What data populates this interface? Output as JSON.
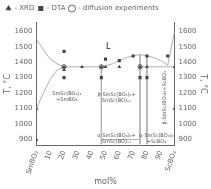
{
  "chart_data": {
    "type": "scatter",
    "xlabel": "mol%",
    "ylabel": "T, °C",
    "y2label": "T, °C",
    "xlim": [
      0,
      100
    ],
    "ylim": [
      860,
      1660
    ],
    "y2lim": [
      860,
      1660
    ],
    "xticks": [
      {
        "value": 0,
        "label": "SmBO₃"
      },
      10,
      20,
      30,
      40,
      50,
      60,
      70,
      80,
      90,
      {
        "value": 100,
        "label": "ScBO₃"
      }
    ],
    "yticks": [
      900,
      1000,
      1100,
      1200,
      1300,
      1400,
      1500,
      1600
    ],
    "y2ticks": [
      900,
      1000,
      1100,
      1200,
      1300,
      1400,
      1500,
      1600
    ],
    "grid": false,
    "legend": "upper left",
    "series": [
      {
        "type": "line",
        "color": "#b0b0b0",
        "line_style": "solid",
        "x": [
          0,
          5,
          10,
          15,
          20
        ],
        "values": [
          1550,
          1480,
          1420,
          1390,
          1370
        ]
      },
      {
        "type": "line",
        "color": "#b0b0b0",
        "line_style": "solid",
        "x": [
          0,
          5,
          10,
          15,
          20
        ],
        "values": [
          1100,
          1200,
          1290,
          1350,
          1370
        ]
      },
      {
        "type": "line",
        "color": "#b0b0b0",
        "line_style": "solid",
        "x": [
          20,
          47
        ],
        "values": [
          1370,
          1370
        ]
      },
      {
        "type": "line",
        "color": "#b0b0b0",
        "line_style": "solid",
        "x": [
          47,
          47
        ],
        "values": [
          1370,
          1300
        ]
      },
      {
        "type": "line",
        "color": "#b0b0b0",
        "line_style": "solid",
        "x": [
          47,
          47
        ],
        "values": [
          1300,
          870
        ]
      },
      {
        "type": "line",
        "color": "#b0b0b0",
        "line_style": "solid",
        "x": [
          47,
          55,
          60,
          65,
          70,
          75,
          80,
          85,
          90,
          95
        ],
        "values": [
          1370,
          1390,
          1410,
          1430,
          1440,
          1450,
          1440,
          1430,
          1410,
          1380
        ]
      },
      {
        "type": "line",
        "color": "#b0b0b0",
        "line_style": "solid",
        "x": [
          95,
          100
        ],
        "values": [
          1380,
          1600
        ]
      },
      {
        "type": "line",
        "color": "#b0b0b0",
        "line_style": "solid",
        "x": [
          75,
          75
        ],
        "values": [
          1450,
          870
        ]
      },
      {
        "type": "line",
        "color": "#b0b0b0",
        "line_style": "solid",
        "x": [
          80,
          80
        ],
        "values": [
          1440,
          870
        ]
      },
      {
        "type": "line",
        "color": "#b0b0b0",
        "line_style": "solid",
        "x": [
          47,
          75
        ],
        "values": [
          900,
          900
        ]
      },
      {
        "type": "line",
        "color": "#b0b0b0",
        "line_style": "solid",
        "x": [
          75,
          80
        ],
        "values": [
          1370,
          1370
        ]
      },
      {
        "type": "line",
        "color": "#b0b0b0",
        "line_style": "solid",
        "x": [
          80,
          100
        ],
        "values": [
          1370,
          1370
        ]
      },
      {
        "type": "scatter",
        "name": "- XRD",
        "color": "#444444",
        "marker": "triangle",
        "x": [
          0,
          0,
          20,
          20,
          33,
          47,
          50,
          60,
          75,
          80,
          100,
          100
        ],
        "values": [
          900,
          1100,
          1370,
          1350,
          1370,
          1370,
          1370,
          1370,
          1370,
          1370,
          1100,
          1370
        ]
      },
      {
        "type": "scatter",
        "name": "- DTA",
        "color": "#444444",
        "marker": "square",
        "x": [
          20,
          20,
          47,
          50,
          60,
          70,
          75,
          80,
          80,
          95
        ],
        "values": [
          1300,
          1470,
          1300,
          1420,
          1410,
          1440,
          1300,
          1300,
          1440,
          1440
        ]
      },
      {
        "type": "scatter",
        "name": "- diffusion experiments",
        "color": "#444444",
        "marker": "open_circle",
        "x": [
          20,
          47,
          75
        ],
        "values": [
          1370,
          1370,
          1370
        ]
      }
    ],
    "annotations": [
      {
        "text": "L",
        "x": 52,
        "y": 1500
      },
      {
        "text": "SmSc(BO₃)₂\n+SmBO₃",
        "x": 22,
        "y": 1180
      },
      {
        "text": "β-SmSc(BO₃)₂+\nSmSc(BO)ₓₓ",
        "x": 58,
        "y": 1170
      },
      {
        "text": "α-SmSc(BO₃)₂+\nSmSc(BO)ₓₓ",
        "x": 58,
        "y": 882
      },
      {
        "text": "α-SmSc(BO₃)₂\n+ScBO₃",
        "x": 87,
        "y": 882
      },
      {
        "text": "β-SmSc(BO₃)₂+ScBO₃",
        "x": 93,
        "y": 1170
      }
    ]
  }
}
